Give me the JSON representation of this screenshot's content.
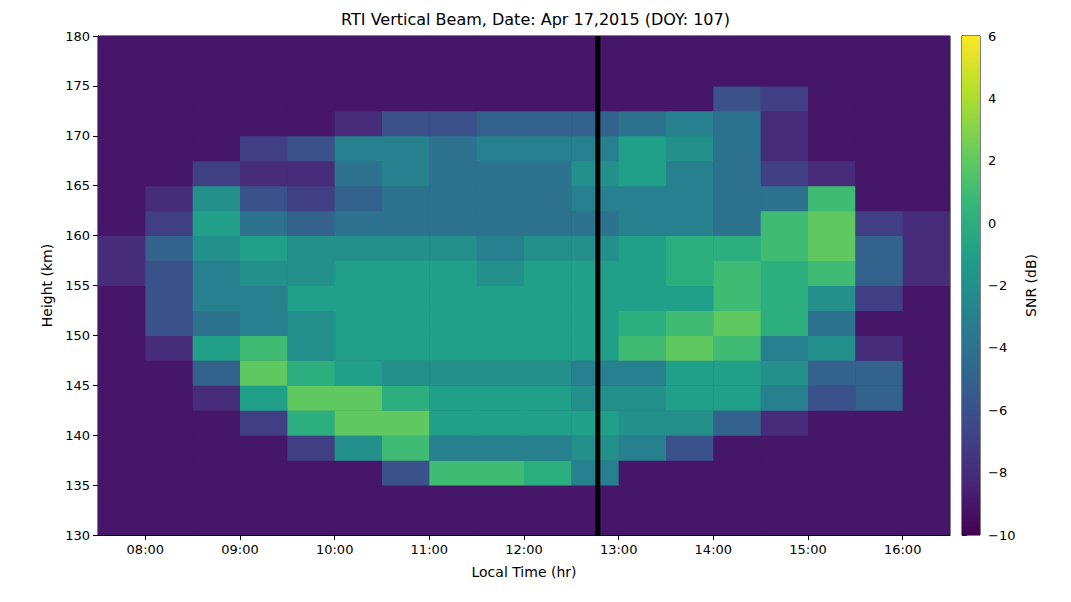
{
  "chart_data": {
    "type": "heatmap",
    "title": "RTI Vertical Beam, Date: Apr 17,2015 (DOY: 107)",
    "x_label": "Local Time (hr)",
    "y_label": "Height (km)",
    "colorbar_label": "SNR (dB)",
    "xlim": [
      7.5,
      16.5
    ],
    "xticks": [
      {
        "value": 8,
        "label": "08:00"
      },
      {
        "value": 9,
        "label": "09:00"
      },
      {
        "value": 10,
        "label": "10:00"
      },
      {
        "value": 11,
        "label": "11:00"
      },
      {
        "value": 12,
        "label": "12:00"
      },
      {
        "value": 13,
        "label": "13:00"
      },
      {
        "value": 14,
        "label": "14:00"
      },
      {
        "value": 15,
        "label": "15:00"
      },
      {
        "value": 16,
        "label": "16:00"
      }
    ],
    "ylim": [
      130,
      180
    ],
    "yticks": [
      130,
      135,
      140,
      145,
      150,
      155,
      160,
      165,
      170,
      175,
      180
    ],
    "colorbar_range": [
      -10,
      6
    ],
    "colorbar_ticks": [
      {
        "value": -10,
        "label": "−10"
      },
      {
        "value": -8,
        "label": "−8"
      },
      {
        "value": -6,
        "label": "−6"
      },
      {
        "value": -4,
        "label": "−4"
      },
      {
        "value": -2,
        "label": "−2"
      },
      0,
      2,
      4,
      6
    ],
    "data_gap": 12.78,
    "x": [
      7.75,
      8.25,
      8.75,
      9.25,
      9.75,
      10.25,
      10.75,
      11.25,
      11.75,
      12.25,
      12.75,
      13.25,
      13.75,
      14.25,
      14.75,
      15.25,
      15.75,
      16.25
    ],
    "y": [
      131.25,
      133.75,
      136.25,
      138.75,
      141.25,
      143.75,
      146.25,
      148.75,
      151.25,
      153.75,
      156.25,
      158.75,
      161.25,
      163.75,
      166.25,
      168.75,
      171.25,
      173.75,
      176.25,
      178.75
    ],
    "snr": [
      [
        -9,
        -9,
        -9,
        -9,
        -9,
        -9,
        -9,
        -9,
        -9,
        -9,
        -9,
        -9,
        -9,
        -9,
        -9,
        -9,
        -9,
        -9
      ],
      [
        -9,
        -9,
        -9,
        -9,
        -9,
        -9,
        -9,
        -9,
        -9,
        -9,
        -9,
        -9,
        -9,
        -9,
        -9,
        -9,
        -9,
        -9
      ],
      [
        -9,
        -9,
        -9,
        -9,
        -9,
        -9,
        -6,
        1,
        1,
        0,
        -3,
        -9,
        -9,
        -9,
        -9,
        -9,
        -9,
        -9
      ],
      [
        -9,
        -9,
        -9,
        -9,
        -7,
        -2,
        1,
        -3,
        -3,
        -3,
        -2,
        -3,
        -6,
        -9,
        -9,
        -9,
        -9,
        -9
      ],
      [
        -9,
        -9,
        -9,
        -7,
        0,
        2,
        2,
        -1,
        -1,
        -1,
        -1,
        -2,
        -2,
        -5,
        -8,
        -9,
        -9,
        -9
      ],
      [
        -9,
        -9,
        -8,
        -1,
        2,
        2,
        0,
        -1,
        -1,
        -1,
        -2,
        -2,
        -1,
        -1,
        -3,
        -6,
        -5,
        -9
      ],
      [
        -9,
        -9,
        -5,
        2,
        0,
        -1,
        -2,
        -2,
        -2,
        -2,
        -3,
        -3,
        -1,
        -1,
        -2,
        -5,
        -5,
        -9
      ],
      [
        -9,
        -8,
        -1,
        1,
        -2,
        -1,
        -1,
        -1,
        -1,
        -1,
        -1,
        1,
        2,
        1,
        -3,
        -2,
        -8,
        -9
      ],
      [
        -9,
        -6,
        -4,
        -3,
        -2,
        -1,
        -1,
        -1,
        -1,
        -1,
        -1,
        0,
        1,
        2,
        0,
        -4,
        -9,
        -9
      ],
      [
        -9,
        -6,
        -3,
        -3,
        -1,
        -1,
        -1,
        -1,
        -1,
        -1,
        -1,
        -1,
        -1,
        1,
        0,
        -2,
        -7,
        -9
      ],
      [
        -8,
        -6,
        -3,
        -2,
        -2,
        -1,
        -1,
        -1,
        -2,
        -1,
        -1,
        -1,
        0,
        1,
        0,
        1,
        -5,
        -8
      ],
      [
        -8,
        -5,
        -2,
        -1,
        -2,
        -2,
        -2,
        -2,
        -3,
        -2,
        -2,
        -1,
        0,
        0,
        1,
        2,
        -5,
        -8
      ],
      [
        -9,
        -7,
        -1,
        -4,
        -5,
        -4,
        -4,
        -4,
        -4,
        -4,
        -4,
        -3,
        -3,
        -4,
        1,
        2,
        -7,
        -8
      ],
      [
        -9,
        -8,
        -2,
        -6,
        -7,
        -5,
        -4,
        -4,
        -4,
        -4,
        -3,
        -3,
        -3,
        -4,
        -4,
        1,
        -9,
        -9
      ],
      [
        -9,
        -9,
        -7,
        -8,
        -8,
        -4,
        -3,
        -4,
        -4,
        -4,
        -2,
        -1,
        -3,
        -4,
        -7,
        -8,
        -9,
        -9
      ],
      [
        -9,
        -9,
        -9,
        -7,
        -6,
        -3,
        -3,
        -4,
        -3,
        -3,
        -3,
        -1,
        -2,
        -4,
        -8,
        -9,
        -9,
        -9
      ],
      [
        -9,
        -9,
        -9,
        -9,
        -9,
        -8,
        -6,
        -6,
        -5,
        -5,
        -5,
        -4,
        -3,
        -4,
        -8,
        -9,
        -9,
        -9
      ],
      [
        -9,
        -9,
        -9,
        -9,
        -9,
        -9,
        -9,
        -9,
        -9,
        -9,
        -9,
        -9,
        -9,
        -6,
        -7,
        -9,
        -9,
        -9
      ],
      [
        -9,
        -9,
        -9,
        -9,
        -9,
        -9,
        -9,
        -9,
        -9,
        -9,
        -9,
        -9,
        -9,
        -9,
        -9,
        -9,
        -9,
        -9
      ],
      [
        -9,
        -9,
        -9,
        -9,
        -9,
        -9,
        -9,
        -9,
        -9,
        -9,
        -9,
        -9,
        -9,
        -9,
        -9,
        -9,
        -9,
        -9
      ]
    ]
  }
}
